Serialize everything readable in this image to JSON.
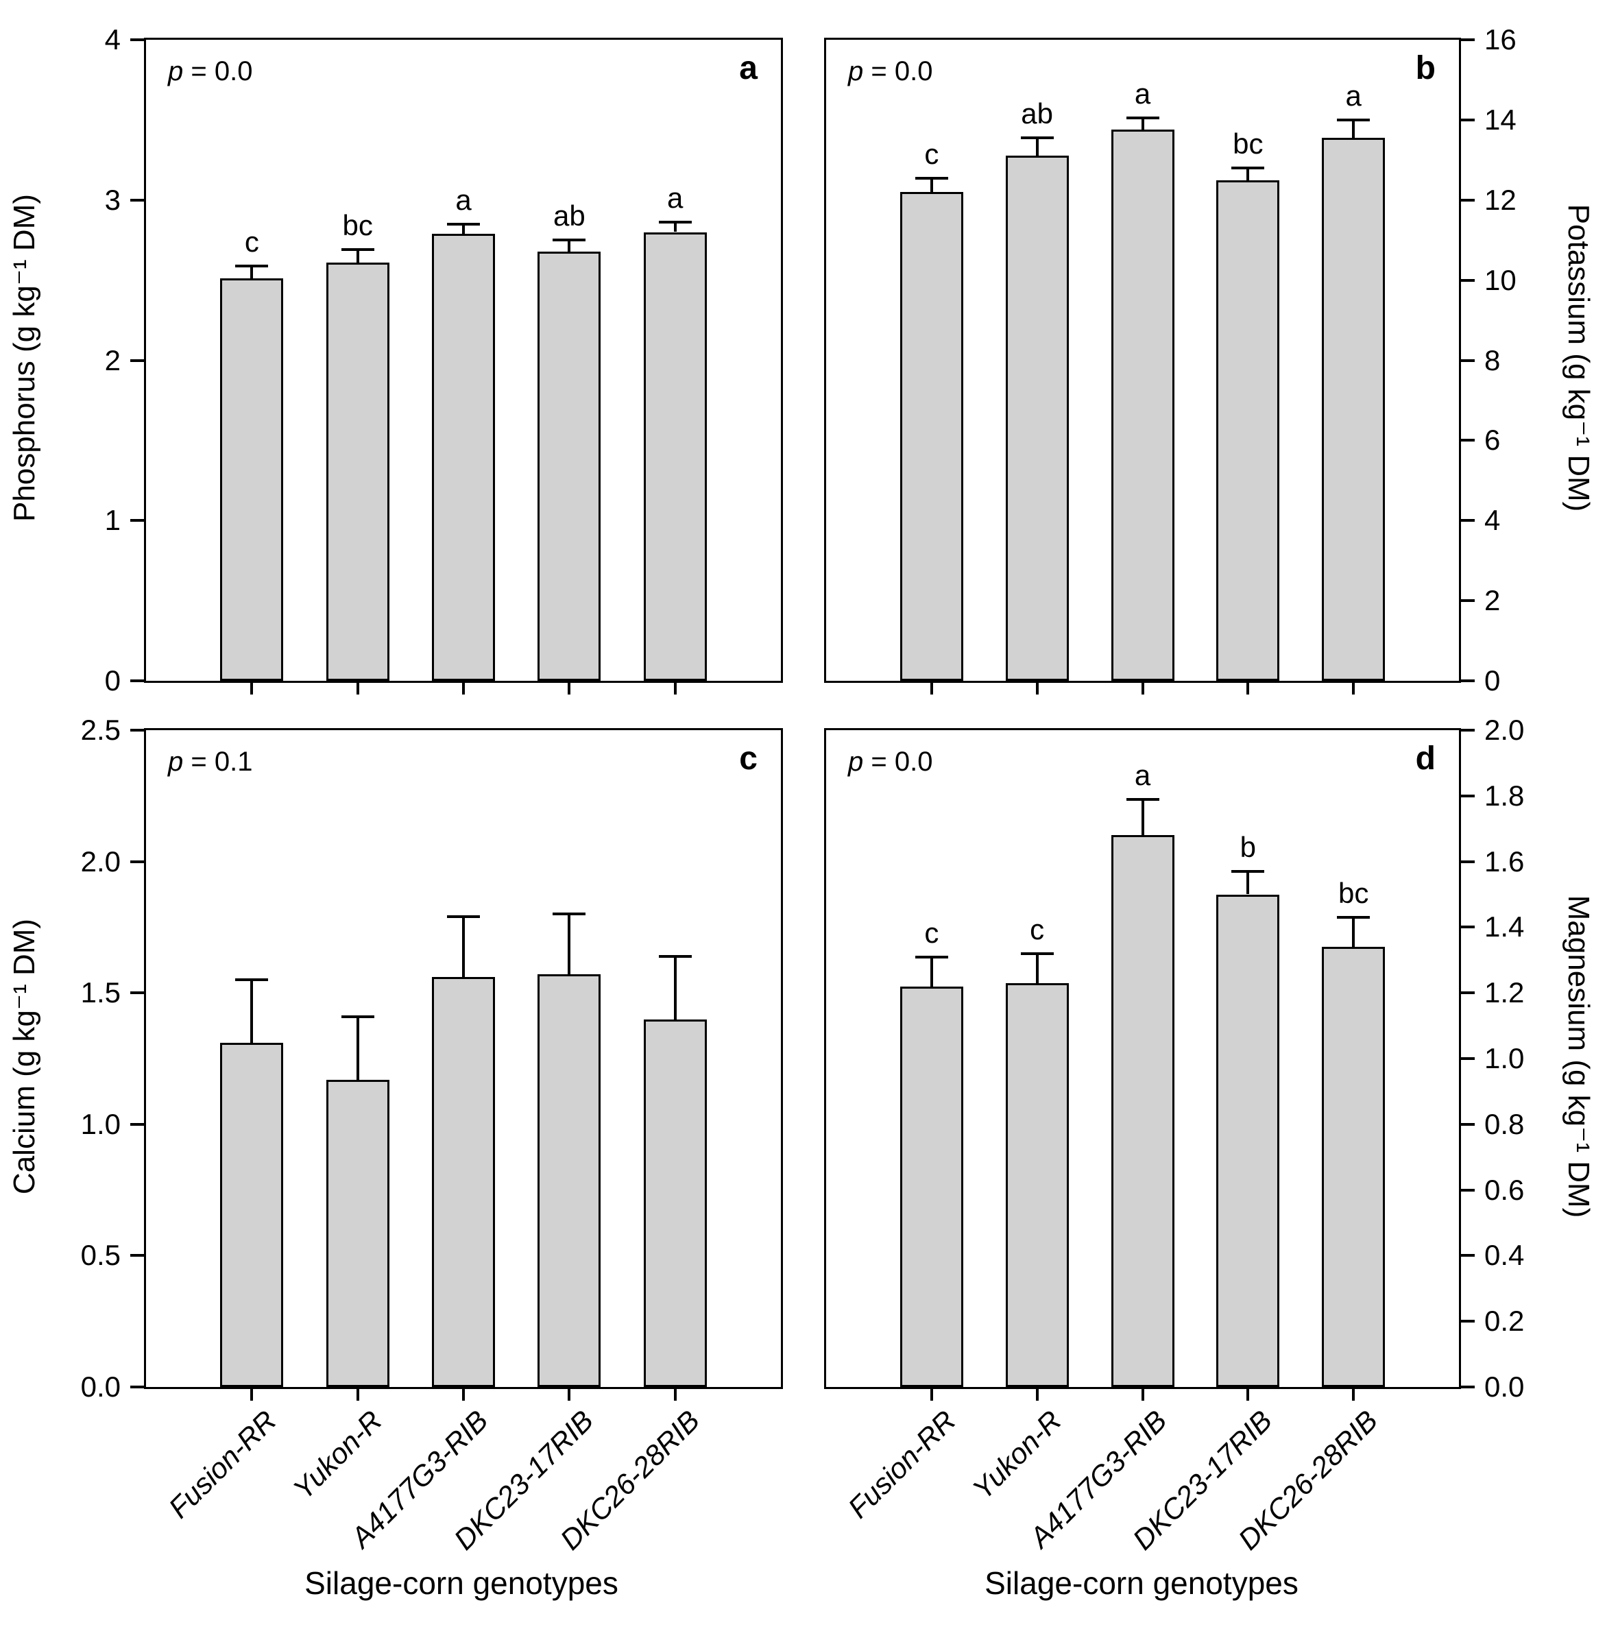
{
  "figure": {
    "background": "#ffffff",
    "bar_fill": "#d2d2d2",
    "bar_border": "#000000",
    "xaxis_title": "Silage-corn genotypes",
    "categories": [
      "Fusion-RR",
      "Yukon-R",
      "A4177G3-RIB",
      "DKC23-17RIB",
      "DKC26-28RIB"
    ]
  },
  "chart_data": [
    {
      "panel_letter": "a",
      "type": "bar",
      "ylabel": "Phosphorus (g kg⁻¹ DM)",
      "ylabel_side": "left",
      "p_label": "p = 0.0",
      "categories": [
        "Fusion-RR",
        "Yukon-R",
        "A4177G3-RIB",
        "DKC23-17RIB",
        "DKC26-28RIB"
      ],
      "values": [
        2.51,
        2.61,
        2.79,
        2.68,
        2.8
      ],
      "errors": [
        0.08,
        0.08,
        0.06,
        0.07,
        0.06
      ],
      "sig_letters": [
        "c",
        "bc",
        "a",
        "ab",
        "a"
      ],
      "ylim": [
        0,
        4
      ],
      "ytick_step": 1,
      "ytick_decimals": 0,
      "grid": false
    },
    {
      "panel_letter": "b",
      "type": "bar",
      "ylabel": "Potassium (g kg⁻¹ DM)",
      "ylabel_side": "right",
      "p_label": "p = 0.0",
      "categories": [
        "Fusion-RR",
        "Yukon-R",
        "A4177G3-RIB",
        "DKC23-17RIB",
        "DKC26-28RIB"
      ],
      "values": [
        12.2,
        13.1,
        13.75,
        12.5,
        13.55
      ],
      "errors": [
        0.35,
        0.45,
        0.3,
        0.3,
        0.45
      ],
      "sig_letters": [
        "c",
        "ab",
        "a",
        "bc",
        "a"
      ],
      "ylim": [
        0,
        16
      ],
      "ytick_step": 2,
      "ytick_decimals": 0,
      "grid": false
    },
    {
      "panel_letter": "c",
      "type": "bar",
      "ylabel": "Calcium (g kg⁻¹ DM)",
      "ylabel_side": "left",
      "p_label": "p = 0.1",
      "categories": [
        "Fusion-RR",
        "Yukon-R",
        "A4177G3-RIB",
        "DKC23-17RIB",
        "DKC26-28RIB"
      ],
      "values": [
        1.31,
        1.17,
        1.56,
        1.57,
        1.4
      ],
      "errors": [
        0.24,
        0.24,
        0.23,
        0.23,
        0.24
      ],
      "sig_letters": [
        "",
        "",
        "",
        "",
        ""
      ],
      "ylim": [
        0,
        2.5
      ],
      "ytick_step": 0.5,
      "ytick_decimals": 1,
      "grid": false
    },
    {
      "panel_letter": "d",
      "type": "bar",
      "ylabel": "Magnesium (g kg⁻¹ DM)",
      "ylabel_side": "right",
      "p_label": "p = 0.0",
      "categories": [
        "Fusion-RR",
        "Yukon-R",
        "A4177G3-RIB",
        "DKC23-17RIB",
        "DKC26-28RIB"
      ],
      "values": [
        1.22,
        1.23,
        1.68,
        1.5,
        1.34
      ],
      "errors": [
        0.09,
        0.09,
        0.11,
        0.07,
        0.09
      ],
      "sig_letters": [
        "c",
        "c",
        "a",
        "b",
        "bc"
      ],
      "ylim": [
        0,
        2.0
      ],
      "ytick_step": 0.2,
      "ytick_decimals": 1,
      "grid": false
    }
  ]
}
